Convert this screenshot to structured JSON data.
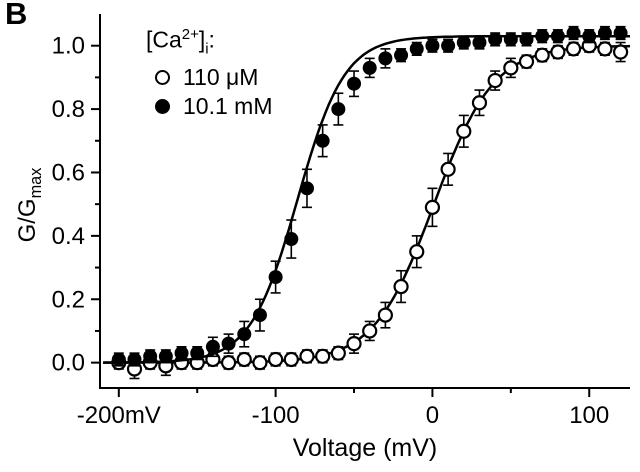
{
  "panel_label": "B",
  "legend": {
    "title_prefix": "[Ca",
    "title_sup": "2+",
    "title_mid": "]",
    "title_sub": "i",
    "title_suffix": ":",
    "items": [
      {
        "marker": "open-circle",
        "label": "110 μM"
      },
      {
        "marker": "filled-circle",
        "label": "10.1 mM"
      }
    ]
  },
  "axis": {
    "ylabel_main": "G/G",
    "ylabel_sub": "max",
    "xlabel": "Voltage (mV)"
  },
  "chart_data": {
    "type": "scatter",
    "title": "",
    "xlabel": "Voltage (mV)",
    "ylabel": "G/Gmax",
    "xlim": [
      -212,
      126
    ],
    "ylim": [
      -0.08,
      1.1
    ],
    "grid": false,
    "legend_position": "upper-left-inside",
    "x_ticks": {
      "values": [
        -200,
        -100,
        0,
        100
      ],
      "labels": [
        "-200mV",
        "-100",
        "0",
        "100"
      ]
    },
    "x_minor_ticks": [
      -150,
      -50,
      50
    ],
    "y_ticks": {
      "values": [
        0,
        0.2,
        0.4,
        0.6,
        0.8,
        1.0
      ],
      "labels": [
        "0.0",
        "0.2",
        "0.4",
        "0.6",
        "0.8",
        "1.0"
      ]
    },
    "y_minor_ticks": [
      0.1,
      0.3,
      0.5,
      0.7,
      0.9
    ],
    "series": [
      {
        "name": "110 μM",
        "marker": "open",
        "x": [
          -200,
          -190,
          -180,
          -170,
          -160,
          -150,
          -140,
          -130,
          -120,
          -110,
          -100,
          -90,
          -80,
          -70,
          -60,
          -50,
          -40,
          -30,
          -20,
          -10,
          0,
          10,
          20,
          30,
          40,
          50,
          60,
          70,
          80,
          90,
          100,
          110,
          120
        ],
        "y": [
          0.0,
          -0.02,
          0.0,
          -0.01,
          0.0,
          0.0,
          0.01,
          0.0,
          0.01,
          0.0,
          0.01,
          0.01,
          0.02,
          0.02,
          0.03,
          0.06,
          0.1,
          0.15,
          0.24,
          0.35,
          0.49,
          0.61,
          0.73,
          0.82,
          0.89,
          0.93,
          0.95,
          0.97,
          0.98,
          0.99,
          1.0,
          0.99,
          0.98
        ],
        "err": [
          0.02,
          0.03,
          0.02,
          0.03,
          0.02,
          0.02,
          0.02,
          0.02,
          0.02,
          0.02,
          0.02,
          0.02,
          0.02,
          0.02,
          0.02,
          0.03,
          0.03,
          0.04,
          0.05,
          0.05,
          0.06,
          0.05,
          0.05,
          0.04,
          0.03,
          0.03,
          0.02,
          0.02,
          0.02,
          0.02,
          0.02,
          0.02,
          0.03
        ],
        "fit": {
          "type": "boltzmann",
          "gmax": 1.0,
          "v_half": 1,
          "k": 19
        }
      },
      {
        "name": "10.1 mM",
        "marker": "filled",
        "x": [
          -200,
          -190,
          -180,
          -170,
          -160,
          -150,
          -140,
          -130,
          -120,
          -110,
          -100,
          -90,
          -80,
          -70,
          -60,
          -50,
          -40,
          -30,
          -20,
          -10,
          0,
          10,
          20,
          30,
          40,
          50,
          60,
          70,
          80,
          90,
          100,
          110,
          120
        ],
        "y": [
          0.01,
          0.01,
          0.02,
          0.02,
          0.03,
          0.03,
          0.05,
          0.06,
          0.09,
          0.15,
          0.27,
          0.39,
          0.55,
          0.7,
          0.8,
          0.88,
          0.93,
          0.96,
          0.97,
          0.99,
          1.0,
          1.0,
          1.01,
          1.01,
          1.02,
          1.02,
          1.02,
          1.03,
          1.03,
          1.04,
          1.03,
          1.04,
          1.04
        ],
        "err": [
          0.02,
          0.02,
          0.02,
          0.02,
          0.02,
          0.02,
          0.03,
          0.03,
          0.04,
          0.05,
          0.05,
          0.06,
          0.06,
          0.05,
          0.05,
          0.04,
          0.03,
          0.03,
          0.02,
          0.02,
          0.02,
          0.02,
          0.02,
          0.02,
          0.02,
          0.02,
          0.02,
          0.02,
          0.02,
          0.02,
          0.02,
          0.02,
          0.02
        ],
        "fit": {
          "type": "boltzmann",
          "gmax": 1.03,
          "v_half": -86,
          "k": 15
        }
      }
    ]
  }
}
